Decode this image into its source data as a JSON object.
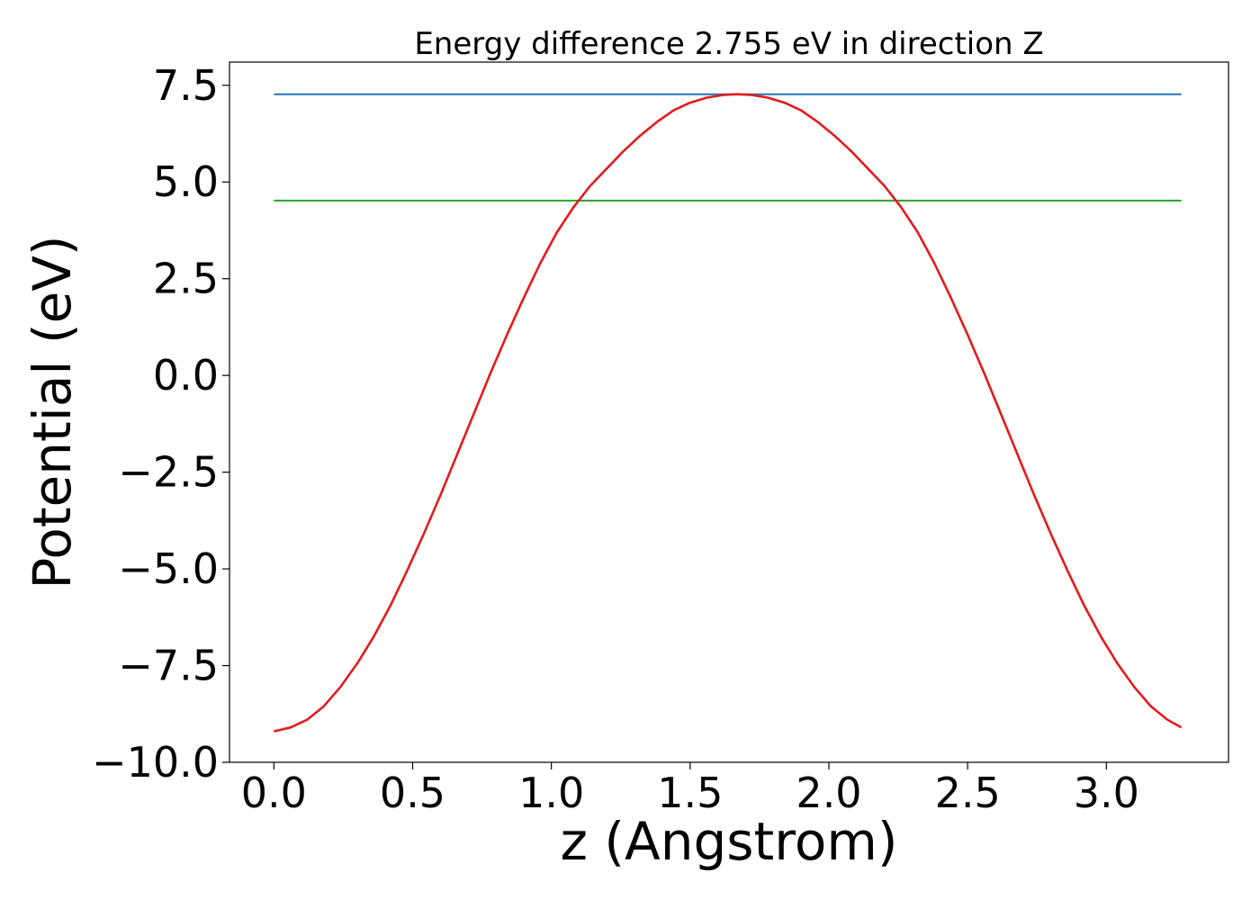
{
  "chart_data": {
    "type": "line",
    "title": "Energy difference 2.755 eV in direction Z",
    "xlabel": "z (Angstrom)",
    "ylabel": "Potential (eV)",
    "xlim": [
      -0.16,
      3.44
    ],
    "ylim": [
      -10.0,
      8.1
    ],
    "xticks": [
      0.0,
      0.5,
      1.0,
      1.5,
      2.0,
      2.5,
      3.0
    ],
    "xtick_labels": [
      "0.0",
      "0.5",
      "1.0",
      "1.5",
      "2.0",
      "2.5",
      "3.0"
    ],
    "yticks": [
      7.5,
      5.0,
      2.5,
      0.0,
      -2.5,
      -5.0,
      -7.5,
      -10.0
    ],
    "ytick_labels": [
      "7.5",
      "5.0",
      "2.5",
      "0.0",
      "−2.5",
      "−5.0",
      "−7.5",
      "−10.0"
    ],
    "grid": false,
    "series": [
      {
        "color": "#1f77b4",
        "x": [
          0.0,
          3.27
        ],
        "y": [
          7.27,
          7.27
        ]
      },
      {
        "color": "#2ca02c",
        "x": [
          0.0,
          3.27
        ],
        "y": [
          4.52,
          4.52
        ]
      },
      {
        "color": "#e31a1c",
        "x": [
          0.0,
          0.06,
          0.12,
          0.18,
          0.24,
          0.3,
          0.36,
          0.42,
          0.48,
          0.54,
          0.6,
          0.66,
          0.72,
          0.78,
          0.84,
          0.9,
          0.96,
          1.02,
          1.08,
          1.14,
          1.2,
          1.26,
          1.32,
          1.38,
          1.44,
          1.5,
          1.56,
          1.62,
          1.67,
          1.72,
          1.78,
          1.84,
          1.9,
          1.96,
          2.02,
          2.08,
          2.14,
          2.2,
          2.26,
          2.32,
          2.38,
          2.44,
          2.5,
          2.56,
          2.62,
          2.68,
          2.74,
          2.8,
          2.86,
          2.92,
          2.98,
          3.04,
          3.1,
          3.16,
          3.22,
          3.27
        ],
        "y": [
          -9.2,
          -9.1,
          -8.9,
          -8.55,
          -8.05,
          -7.45,
          -6.75,
          -5.95,
          -5.05,
          -4.1,
          -3.1,
          -2.05,
          -1.0,
          0.05,
          1.05,
          2.0,
          2.9,
          3.7,
          4.35,
          4.9,
          5.35,
          5.8,
          6.2,
          6.55,
          6.85,
          7.05,
          7.18,
          7.25,
          7.27,
          7.25,
          7.18,
          7.05,
          6.85,
          6.55,
          6.2,
          5.8,
          5.35,
          4.9,
          4.35,
          3.7,
          2.9,
          2.0,
          1.05,
          0.05,
          -1.0,
          -2.05,
          -3.1,
          -4.1,
          -5.05,
          -5.95,
          -6.75,
          -7.45,
          -8.05,
          -8.55,
          -8.9,
          -9.1
        ]
      }
    ]
  }
}
